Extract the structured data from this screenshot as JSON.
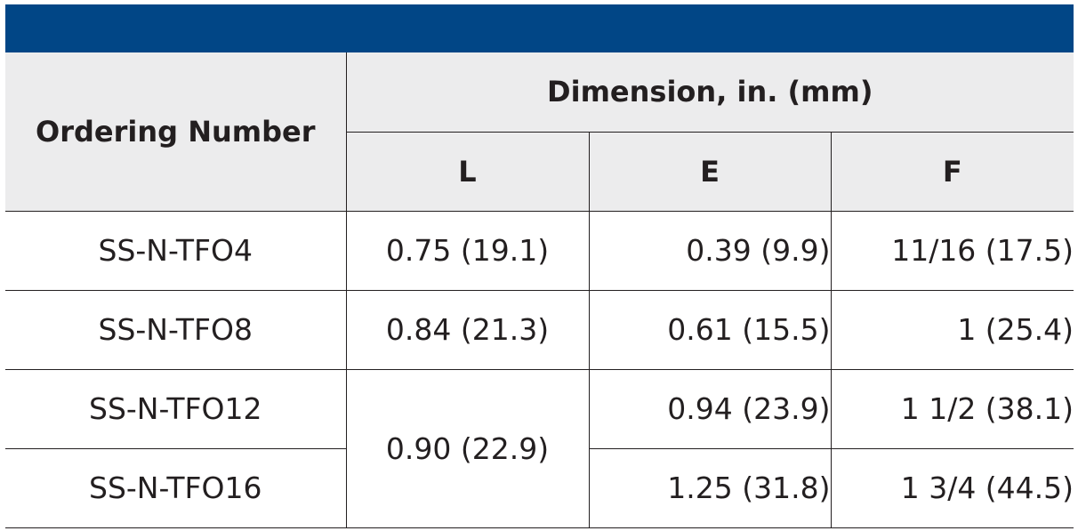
{
  "header": {
    "ordering_number": "Ordering Number",
    "dimension_group": "Dimension, in. (mm)",
    "columns": [
      "L",
      "E",
      "F"
    ]
  },
  "rows": [
    {
      "ordering_number": "SS-N-TFO4",
      "L": "0.75 (19.1)",
      "E": "0.39 (9.9)",
      "F": "11/16 (17.5)"
    },
    {
      "ordering_number": "SS-N-TFO8",
      "L": "0.84 (21.3)",
      "E": "0.61 (15.5)",
      "F": "1 (25.4)"
    },
    {
      "ordering_number": "SS-N-TFO12",
      "L": "0.90 (22.9)",
      "E": "0.94 (23.9)",
      "F": "1 1/2 (38.1)"
    },
    {
      "ordering_number": "SS-N-TFO16",
      "E": "1.25 (31.8)",
      "F": "1 3/4 (44.5)"
    }
  ],
  "colors": {
    "banner": "#014686",
    "header_background": "#ececed",
    "text": "#231f20"
  }
}
